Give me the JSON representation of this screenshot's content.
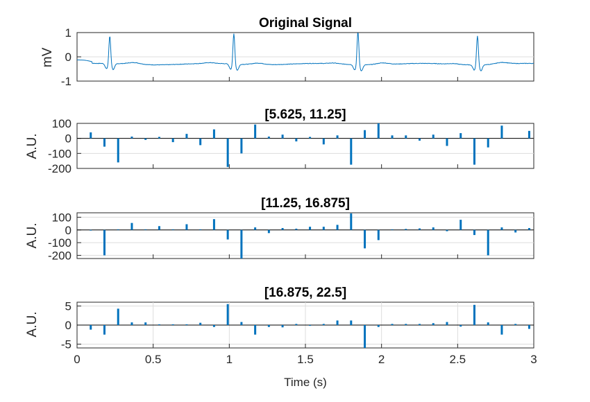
{
  "chart_data": [
    {
      "type": "line",
      "title": "Original Signal",
      "xlabel": "",
      "ylabel": "mV",
      "xlim": [
        0,
        3
      ],
      "ylim": [
        -1,
        1
      ],
      "yticks": [
        -1,
        0,
        1
      ],
      "grid": true,
      "baseline": -0.3,
      "r_peaks": [
        {
          "t": 0.215,
          "amp": 0.88
        },
        {
          "t": 1.03,
          "amp": 1.0
        },
        {
          "t": 1.845,
          "amp": 1.1
        },
        {
          "t": 2.63,
          "amp": 0.95
        }
      ]
    },
    {
      "type": "bar",
      "title": "[5.625, 11.25]",
      "ylabel": "A.U.",
      "xlim": [
        0,
        3
      ],
      "ylim": [
        -200,
        100
      ],
      "yticks": [
        -200,
        -100,
        0,
        100
      ],
      "x": [
        0.09,
        0.18,
        0.27,
        0.36,
        0.45,
        0.54,
        0.63,
        0.72,
        0.81,
        0.9,
        0.99,
        1.08,
        1.17,
        1.26,
        1.35,
        1.44,
        1.53,
        1.62,
        1.71,
        1.8,
        1.89,
        1.98,
        2.07,
        2.16,
        2.25,
        2.34,
        2.43,
        2.52,
        2.61,
        2.7,
        2.79,
        2.97
      ],
      "values": [
        40,
        -55,
        -160,
        12,
        -10,
        10,
        -25,
        30,
        -45,
        60,
        -190,
        -100,
        92,
        12,
        25,
        -20,
        10,
        -40,
        20,
        -175,
        55,
        100,
        20,
        20,
        -15,
        25,
        -50,
        35,
        -175,
        -60,
        85,
        50
      ]
    },
    {
      "type": "bar",
      "title": "[11.25, 16.875]",
      "ylabel": "A.U.",
      "xlim": [
        0,
        3
      ],
      "ylim": [
        -225,
        135
      ],
      "yticks": [
        -200,
        -100,
        0,
        100
      ],
      "x": [
        0.09,
        0.18,
        0.27,
        0.36,
        0.45,
        0.54,
        0.63,
        0.72,
        0.81,
        0.9,
        0.99,
        1.08,
        1.17,
        1.26,
        1.35,
        1.44,
        1.53,
        1.62,
        1.71,
        1.8,
        1.89,
        1.98,
        2.07,
        2.16,
        2.25,
        2.34,
        2.43,
        2.52,
        2.61,
        2.7,
        2.79,
        2.88,
        2.97
      ],
      "values": [
        -5,
        -200,
        5,
        55,
        5,
        30,
        5,
        45,
        5,
        85,
        -75,
        -225,
        20,
        -25,
        15,
        10,
        25,
        25,
        40,
        130,
        -145,
        -80,
        5,
        8,
        12,
        20,
        -10,
        80,
        -40,
        -200,
        20,
        -20,
        15
      ]
    },
    {
      "type": "bar",
      "title": "[16.875, 22.5]",
      "xlabel": "Time (s)",
      "ylabel": "A.U.",
      "xlim": [
        0,
        3
      ],
      "ylim": [
        -6,
        6
      ],
      "yticks": [
        -5,
        0,
        5
      ],
      "xticks": [
        0,
        0.5,
        1,
        1.5,
        2,
        2.5,
        3
      ],
      "x": [
        0.09,
        0.18,
        0.27,
        0.36,
        0.45,
        0.54,
        0.63,
        0.72,
        0.81,
        0.9,
        0.99,
        1.08,
        1.17,
        1.26,
        1.35,
        1.44,
        1.53,
        1.62,
        1.71,
        1.8,
        1.89,
        1.98,
        2.07,
        2.16,
        2.25,
        2.34,
        2.43,
        2.52,
        2.61,
        2.7,
        2.79,
        2.88,
        2.97
      ],
      "values": [
        -1.2,
        -2.5,
        4.3,
        0.7,
        0.7,
        0.2,
        0.2,
        0.2,
        0.6,
        -0.5,
        5.5,
        0.8,
        -2.5,
        -0.5,
        -0.6,
        0.3,
        -0.2,
        0.3,
        1.2,
        1.2,
        -6.2,
        -0.5,
        0.3,
        0.3,
        0.3,
        0.5,
        0.8,
        -0.4,
        5.3,
        0.7,
        -2.5,
        0.3,
        -1.0
      ]
    }
  ]
}
